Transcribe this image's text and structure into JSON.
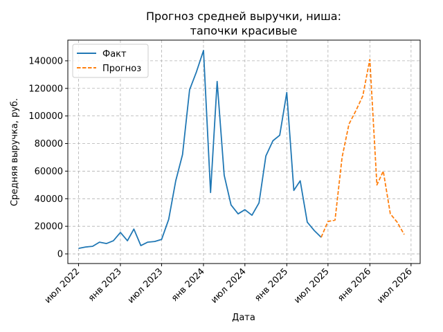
{
  "chart_data": {
    "type": "line",
    "title_lines": [
      "Прогноз средней выручки, ниша:",
      "тапочки красивые"
    ],
    "xlabel": "Дата",
    "ylabel": "Средняя выручка, руб.",
    "x_ticks": [
      {
        "date": "2022-07-01",
        "label": "июл 2022"
      },
      {
        "date": "2023-01-01",
        "label": "янв 2023"
      },
      {
        "date": "2023-07-01",
        "label": "июл 2023"
      },
      {
        "date": "2024-01-01",
        "label": "янв 2024"
      },
      {
        "date": "2024-07-01",
        "label": "июл 2024"
      },
      {
        "date": "2025-01-01",
        "label": "янв 2025"
      },
      {
        "date": "2025-07-01",
        "label": "июл 2025"
      },
      {
        "date": "2026-01-01",
        "label": "янв 2026"
      },
      {
        "date": "2026-07-01",
        "label": "июл 2026"
      }
    ],
    "y_ticks": [
      0,
      20000,
      40000,
      60000,
      80000,
      100000,
      120000,
      140000
    ],
    "xlim": [
      "2022-05-15",
      "2026-08-10"
    ],
    "ylim": [
      -7000,
      155000
    ],
    "grid": true,
    "legend_position": "top-left",
    "series": [
      {
        "name": "Факт",
        "color": "#1f77b4",
        "style": "solid",
        "points": [
          [
            "2022-07-01",
            4000
          ],
          [
            "2022-08-01",
            5000
          ],
          [
            "2022-09-01",
            5500
          ],
          [
            "2022-10-01",
            8500
          ],
          [
            "2022-11-01",
            7500
          ],
          [
            "2022-12-01",
            9500
          ],
          [
            "2023-01-01",
            15500
          ],
          [
            "2023-02-01",
            9500
          ],
          [
            "2023-03-01",
            18000
          ],
          [
            "2023-04-01",
            6000
          ],
          [
            "2023-05-01",
            8500
          ],
          [
            "2023-06-01",
            9000
          ],
          [
            "2023-07-01",
            10500
          ],
          [
            "2023-08-01",
            25000
          ],
          [
            "2023-09-01",
            53000
          ],
          [
            "2023-10-01",
            72000
          ],
          [
            "2023-11-01",
            119000
          ],
          [
            "2023-12-01",
            132000
          ],
          [
            "2024-01-01",
            147500
          ],
          [
            "2024-02-01",
            44500
          ],
          [
            "2024-03-01",
            125000
          ],
          [
            "2024-04-01",
            57000
          ],
          [
            "2024-05-01",
            35500
          ],
          [
            "2024-06-01",
            29000
          ],
          [
            "2024-07-01",
            32000
          ],
          [
            "2024-08-01",
            28000
          ],
          [
            "2024-09-01",
            37000
          ],
          [
            "2024-10-01",
            71000
          ],
          [
            "2024-11-01",
            82000
          ],
          [
            "2024-12-01",
            86000
          ],
          [
            "2025-01-01",
            117000
          ],
          [
            "2025-02-01",
            46000
          ],
          [
            "2025-03-01",
            53000
          ],
          [
            "2025-04-01",
            23000
          ],
          [
            "2025-05-01",
            17000
          ],
          [
            "2025-06-01",
            12000
          ]
        ]
      },
      {
        "name": "Прогноз",
        "color": "#ff7f0e",
        "style": "dashed",
        "points": [
          [
            "2025-06-01",
            12000
          ],
          [
            "2025-07-01",
            23500
          ],
          [
            "2025-08-01",
            24500
          ],
          [
            "2025-09-01",
            70000
          ],
          [
            "2025-10-01",
            94000
          ],
          [
            "2025-11-01",
            104000
          ],
          [
            "2025-12-01",
            114500
          ],
          [
            "2026-01-01",
            141000
          ],
          [
            "2026-02-01",
            50000
          ],
          [
            "2026-03-01",
            60000
          ],
          [
            "2026-04-01",
            29000
          ],
          [
            "2026-05-01",
            23000
          ],
          [
            "2026-06-01",
            14000
          ]
        ]
      }
    ]
  }
}
